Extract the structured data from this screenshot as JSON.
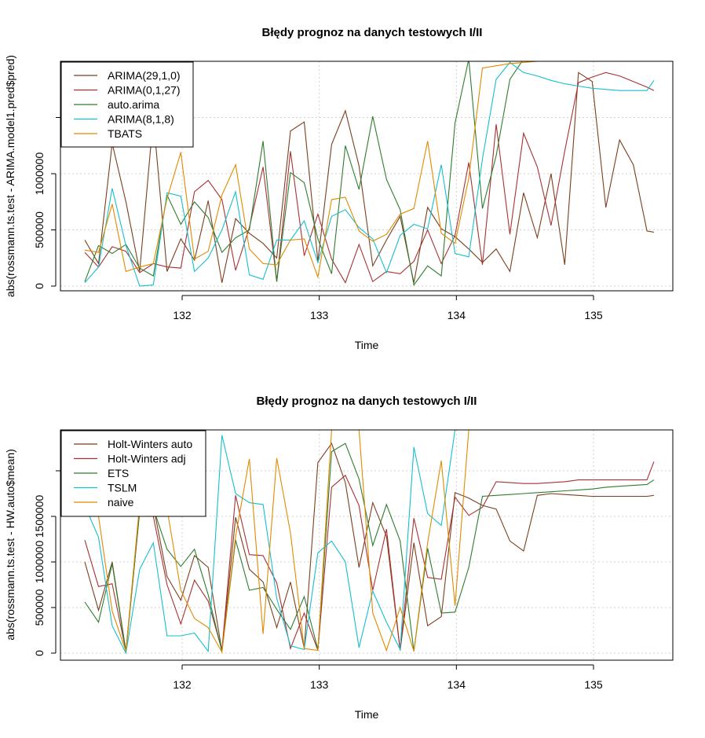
{
  "chart_data": [
    {
      "type": "line",
      "title": "Błędy prognoz na danych testowych I/II",
      "xlabel": "Time",
      "ylabel": "abs(rossmann.ts.test - ARIMA.model1.pred$pred)",
      "xlim": [
        131.25,
        135.5
      ],
      "ylim": [
        0,
        2000000
      ],
      "x_ticks": [
        132,
        133,
        134,
        135
      ],
      "x_tick_labels": [
        "132",
        "133",
        "134",
        "135"
      ],
      "y_ticks": [
        0,
        500000,
        1000000
      ],
      "y_tick_labels": [
        "0",
        "500000",
        "1000000"
      ],
      "grid": true,
      "legend_position": "top-left",
      "x": [
        131.29,
        131.39,
        131.49,
        131.59,
        131.69,
        131.79,
        131.89,
        131.99,
        132.09,
        132.19,
        132.29,
        132.39,
        132.49,
        132.59,
        132.69,
        132.79,
        132.89,
        132.99,
        133.09,
        133.19,
        133.29,
        133.39,
        133.49,
        133.59,
        133.69,
        133.79,
        133.89,
        133.99,
        134.09,
        134.19,
        134.29,
        134.39,
        134.49,
        134.59,
        134.69,
        134.79,
        134.89,
        134.99,
        135.09,
        135.19,
        135.29,
        135.39,
        135.44
      ],
      "series": [
        {
          "name": "ARIMA(29,1,0)",
          "color": "#7B3F1E",
          "values": [
            410000,
            200000,
            1270000,
            750000,
            130000,
            1500000,
            130000,
            420000,
            230000,
            760000,
            30000,
            600000,
            470000,
            380000,
            250000,
            1380000,
            1460000,
            220000,
            1260000,
            1560000,
            1070000,
            180000,
            410000,
            620000,
            30000,
            700000,
            510000,
            440000,
            330000,
            210000,
            330000,
            130000,
            830000,
            430000,
            1000000,
            190000,
            1900000,
            1820000,
            700000,
            1300000,
            1080000,
            490000,
            480000
          ]
        },
        {
          "name": "ARIMA(0,1,27)",
          "color": "#A83232",
          "values": [
            300000,
            170000,
            350000,
            310000,
            120000,
            200000,
            170000,
            160000,
            840000,
            940000,
            770000,
            140000,
            520000,
            1060000,
            40000,
            1200000,
            270000,
            640000,
            240000,
            30000,
            370000,
            40000,
            130000,
            110000,
            220000,
            500000,
            200000,
            450000,
            1100000,
            190000,
            1440000,
            460000,
            1360000,
            1060000,
            540000,
            1200000,
            1810000,
            1860000,
            1900000,
            1870000,
            1820000,
            1770000,
            1740000
          ]
        },
        {
          "name": "auto.arima",
          "color": "#2E7D2E",
          "values": [
            40000,
            360000,
            290000,
            370000,
            160000,
            90000,
            810000,
            550000,
            750000,
            610000,
            300000,
            430000,
            500000,
            1290000,
            40000,
            1010000,
            920000,
            420000,
            110000,
            1250000,
            860000,
            1510000,
            950000,
            680000,
            10000,
            180000,
            90000,
            1450000,
            2020000,
            690000,
            1160000,
            1840000,
            2020000,
            2000000,
            2000000,
            2000000,
            2000000,
            2000000,
            2000000,
            2000000,
            2000000,
            2000000,
            2000000
          ]
        },
        {
          "name": "ARIMA(8,1,8)",
          "color": "#17BECF",
          "values": [
            30000,
            170000,
            870000,
            360000,
            0,
            10000,
            830000,
            800000,
            130000,
            250000,
            500000,
            840000,
            100000,
            60000,
            410000,
            410000,
            580000,
            210000,
            620000,
            680000,
            520000,
            420000,
            120000,
            450000,
            550000,
            510000,
            1080000,
            290000,
            260000,
            1130000,
            1840000,
            1990000,
            1900000,
            1870000,
            1830000,
            1800000,
            1780000,
            1760000,
            1750000,
            1740000,
            1740000,
            1740000,
            1830000
          ]
        },
        {
          "name": "TBATS",
          "color": "#E08A00",
          "values": [
            320000,
            300000,
            730000,
            130000,
            170000,
            200000,
            780000,
            1190000,
            240000,
            310000,
            810000,
            1080000,
            330000,
            200000,
            190000,
            410000,
            420000,
            80000,
            770000,
            790000,
            490000,
            400000,
            460000,
            640000,
            690000,
            1290000,
            470000,
            380000,
            960000,
            1940000,
            1960000,
            1980000,
            1990000,
            2000000,
            2000000,
            2000000,
            2000000,
            2000000,
            2000000,
            2000000,
            2000000,
            2000000,
            2000000
          ]
        }
      ]
    },
    {
      "type": "line",
      "title": "Błędy prognoz na danych testowych I/II",
      "xlabel": "Time",
      "ylabel": "abs(rossmann.ts.test - HW.auto$mean)",
      "xlim": [
        131.25,
        135.5
      ],
      "ylim": [
        0,
        2450000
      ],
      "x_ticks": [
        132,
        133,
        134,
        135
      ],
      "x_tick_labels": [
        "132",
        "133",
        "134",
        "135"
      ],
      "y_ticks": [
        0,
        500000,
        1000000,
        1500000
      ],
      "y_tick_labels": [
        "0",
        "500000",
        "1000000",
        "1500000"
      ],
      "grid": true,
      "legend_position": "top-left",
      "x": [
        131.29,
        131.39,
        131.49,
        131.59,
        131.69,
        131.79,
        131.89,
        131.99,
        132.09,
        132.19,
        132.29,
        132.39,
        132.49,
        132.59,
        132.69,
        132.79,
        132.89,
        132.99,
        133.09,
        133.19,
        133.29,
        133.39,
        133.49,
        133.59,
        133.69,
        133.79,
        133.89,
        133.99,
        134.09,
        134.19,
        134.29,
        134.39,
        134.49,
        134.59,
        134.69,
        134.79,
        134.89,
        134.99,
        135.09,
        135.19,
        135.29,
        135.39,
        135.44
      ],
      "series": [
        {
          "name": "Holt-Winters auto",
          "color": "#7B3F1E",
          "values": [
            1000000,
            470000,
            1000000,
            20000,
            1600000,
            1620000,
            840000,
            580000,
            1070000,
            940000,
            20000,
            1490000,
            920000,
            780000,
            280000,
            780000,
            50000,
            2090000,
            2300000,
            1870000,
            940000,
            1650000,
            1280000,
            30000,
            1210000,
            300000,
            400000,
            1760000,
            1700000,
            1620000,
            1580000,
            1230000,
            1120000,
            1730000,
            1750000,
            1740000,
            1730000,
            1720000,
            1720000,
            1720000,
            1720000,
            1720000,
            1730000
          ]
        },
        {
          "name": "Holt-Winters adj",
          "color": "#A83232",
          "values": [
            1240000,
            730000,
            760000,
            20000,
            1550000,
            1500000,
            750000,
            320000,
            800000,
            570000,
            30000,
            1730000,
            1080000,
            1070000,
            770000,
            50000,
            440000,
            30000,
            1820000,
            1950000,
            1620000,
            690000,
            1360000,
            30000,
            1480000,
            830000,
            810000,
            1710000,
            1510000,
            1600000,
            1880000,
            1870000,
            1860000,
            1860000,
            1870000,
            1880000,
            1900000,
            1900000,
            1900000,
            1900000,
            1900000,
            1900000,
            2100000
          ]
        },
        {
          "name": "ETS",
          "color": "#2E7D2E",
          "values": [
            560000,
            340000,
            980000,
            10000,
            1560000,
            1590000,
            1140000,
            950000,
            1140000,
            640000,
            20000,
            1240000,
            690000,
            720000,
            480000,
            260000,
            620000,
            40000,
            2210000,
            2300000,
            1910000,
            1180000,
            1630000,
            1230000,
            20000,
            1150000,
            440000,
            450000,
            940000,
            1720000,
            1730000,
            1740000,
            1750000,
            1760000,
            1770000,
            1780000,
            1790000,
            1800000,
            1820000,
            1830000,
            1840000,
            1850000,
            1900000
          ]
        },
        {
          "name": "TSLM",
          "color": "#17BECF",
          "values": [
            1620000,
            1270000,
            300000,
            0,
            920000,
            1210000,
            190000,
            190000,
            220000,
            20000,
            2390000,
            1750000,
            1650000,
            1630000,
            600000,
            80000,
            40000,
            1100000,
            1230000,
            1000000,
            60000,
            680000,
            340000,
            40000,
            2260000,
            1530000,
            1400000,
            2450000,
            2450000,
            2450000,
            2450000,
            2450000,
            2450000,
            2450000,
            2450000,
            2450000,
            2450000,
            2450000,
            2450000,
            2450000,
            2450000,
            2450000,
            2450000
          ]
        },
        {
          "name": "naive",
          "color": "#E08A00",
          "values": [
            2450000,
            1500000,
            460000,
            20000,
            1640000,
            1540000,
            1580000,
            690000,
            380000,
            280000,
            10000,
            1280000,
            2130000,
            210000,
            2140000,
            1320000,
            50000,
            30000,
            2450000,
            2450000,
            2450000,
            440000,
            30000,
            500000,
            20000,
            1210000,
            2110000,
            520000,
            2450000,
            2450000,
            2450000,
            2450000,
            2450000,
            2450000,
            2450000,
            2450000,
            2450000,
            2450000,
            2450000,
            2450000,
            2450000,
            2450000,
            2450000
          ]
        }
      ]
    }
  ]
}
